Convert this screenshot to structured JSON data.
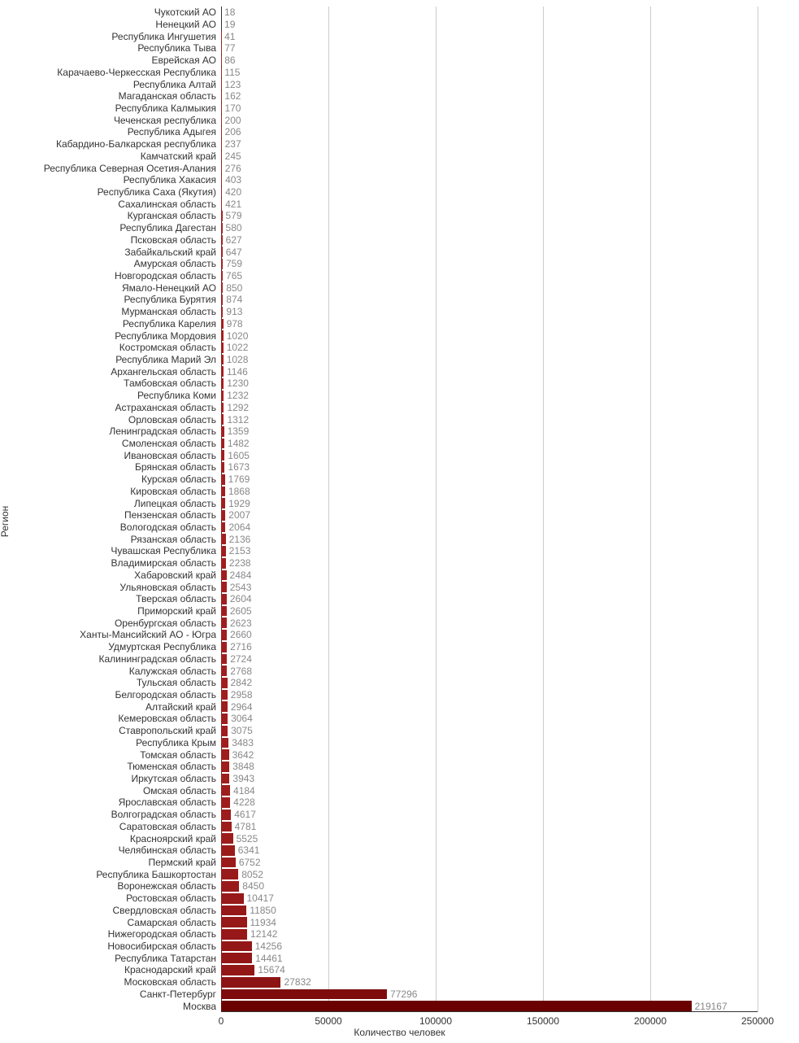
{
  "chart": {
    "type": "bar-horizontal",
    "y_axis_title": "Регион",
    "x_axis_title": "Количество человек",
    "xlim": [
      0,
      250000
    ],
    "xticks": [
      0,
      50000,
      100000,
      150000,
      200000,
      250000
    ],
    "grid_color": "#cccccc",
    "axis_color": "#333333",
    "bar_color_light": "#af2626",
    "bar_color_dark": "#6a0000",
    "background_color": "#ffffff",
    "label_color": "#333333",
    "value_label_color": "#888888",
    "font_size_axis": 12,
    "font_size_value": 12,
    "font_size_title": 12,
    "bar_fill_ratio": 0.86,
    "data": [
      {
        "region": "Чукотский АО",
        "value": 18
      },
      {
        "region": "Ненецкий АО",
        "value": 19
      },
      {
        "region": "Республика Ингушетия",
        "value": 41
      },
      {
        "region": "Республика Тыва",
        "value": 77
      },
      {
        "region": "Еврейская АО",
        "value": 86
      },
      {
        "region": "Карачаево-Черкесская Республика",
        "value": 115
      },
      {
        "region": "Республика Алтай",
        "value": 123
      },
      {
        "region": "Магаданская область",
        "value": 162
      },
      {
        "region": "Республика Калмыкия",
        "value": 170
      },
      {
        "region": "Чеченская республика",
        "value": 200
      },
      {
        "region": "Республика Адыгея",
        "value": 206
      },
      {
        "region": "Кабардино-Балкарская республика",
        "value": 237
      },
      {
        "region": "Камчатский край",
        "value": 245
      },
      {
        "region": "Республика Северная Осетия-Алания",
        "value": 276
      },
      {
        "region": "Республика Хакасия",
        "value": 403
      },
      {
        "region": "Республика Саха (Якутия)",
        "value": 420
      },
      {
        "region": "Сахалинская область",
        "value": 421
      },
      {
        "region": "Курганская область",
        "value": 579
      },
      {
        "region": "Республика Дагестан",
        "value": 580
      },
      {
        "region": "Псковская область",
        "value": 627
      },
      {
        "region": "Забайкальский край",
        "value": 647
      },
      {
        "region": "Амурская область",
        "value": 759
      },
      {
        "region": "Новгородская область",
        "value": 765
      },
      {
        "region": "Ямало-Ненецкий АО",
        "value": 850
      },
      {
        "region": "Республика Бурятия",
        "value": 874
      },
      {
        "region": "Мурманская область",
        "value": 913
      },
      {
        "region": "Республика Карелия",
        "value": 978
      },
      {
        "region": "Республика Мордовия",
        "value": 1020
      },
      {
        "region": "Костромская область",
        "value": 1022
      },
      {
        "region": "Республика Марий Эл",
        "value": 1028
      },
      {
        "region": "Архангельская область",
        "value": 1146
      },
      {
        "region": "Тамбовская область",
        "value": 1230
      },
      {
        "region": "Республика Коми",
        "value": 1232
      },
      {
        "region": "Астраханская область",
        "value": 1292
      },
      {
        "region": "Орловская область",
        "value": 1312
      },
      {
        "region": "Ленинградская область",
        "value": 1359
      },
      {
        "region": "Смоленская область",
        "value": 1482
      },
      {
        "region": "Ивановская область",
        "value": 1605
      },
      {
        "region": "Брянская область",
        "value": 1673
      },
      {
        "region": "Курская область",
        "value": 1769
      },
      {
        "region": "Кировская область",
        "value": 1868
      },
      {
        "region": "Липецкая область",
        "value": 1929
      },
      {
        "region": "Пензенская область",
        "value": 2007
      },
      {
        "region": "Вологодская область",
        "value": 2064
      },
      {
        "region": "Рязанская область",
        "value": 2136
      },
      {
        "region": "Чувашская Республика",
        "value": 2153
      },
      {
        "region": "Владимирская область",
        "value": 2238
      },
      {
        "region": "Хабаровский край",
        "value": 2484
      },
      {
        "region": "Ульяновская область",
        "value": 2543
      },
      {
        "region": "Тверская область",
        "value": 2604
      },
      {
        "region": "Приморский край",
        "value": 2605
      },
      {
        "region": "Оренбургская область",
        "value": 2623
      },
      {
        "region": "Ханты-Мансийский АО - Югра",
        "value": 2660
      },
      {
        "region": "Удмуртская Республика",
        "value": 2716
      },
      {
        "region": "Калининградская область",
        "value": 2724
      },
      {
        "region": "Калужская область",
        "value": 2768
      },
      {
        "region": "Тульская область",
        "value": 2842
      },
      {
        "region": "Белгородская область",
        "value": 2958
      },
      {
        "region": "Алтайский край",
        "value": 2964
      },
      {
        "region": "Кемеровская область",
        "value": 3064
      },
      {
        "region": "Ставропольский край",
        "value": 3075
      },
      {
        "region": "Республика Крым",
        "value": 3483
      },
      {
        "region": "Томская область",
        "value": 3642
      },
      {
        "region": "Тюменская область",
        "value": 3848
      },
      {
        "region": "Иркутская область",
        "value": 3943
      },
      {
        "region": "Омская область",
        "value": 4184
      },
      {
        "region": "Ярославская область",
        "value": 4228
      },
      {
        "region": "Волгоградская область",
        "value": 4617
      },
      {
        "region": "Саратовская область",
        "value": 4781
      },
      {
        "region": "Красноярский край",
        "value": 5525
      },
      {
        "region": "Челябинская область",
        "value": 6341
      },
      {
        "region": "Пермский край",
        "value": 6752
      },
      {
        "region": "Республика Башкортостан",
        "value": 8052
      },
      {
        "region": "Воронежская область",
        "value": 8450
      },
      {
        "region": "Ростовская область",
        "value": 10417
      },
      {
        "region": "Свердловская область",
        "value": 11850
      },
      {
        "region": "Самарская область",
        "value": 11934
      },
      {
        "region": "Нижегородская область",
        "value": 12142
      },
      {
        "region": "Новосибирская область",
        "value": 14256
      },
      {
        "region": "Республика Татарстан",
        "value": 14461
      },
      {
        "region": "Краснодарский край",
        "value": 15674
      },
      {
        "region": "Московская область",
        "value": 27832
      },
      {
        "region": "Санкт-Петербург",
        "value": 77296
      },
      {
        "region": "Москва",
        "value": 219167
      }
    ]
  }
}
